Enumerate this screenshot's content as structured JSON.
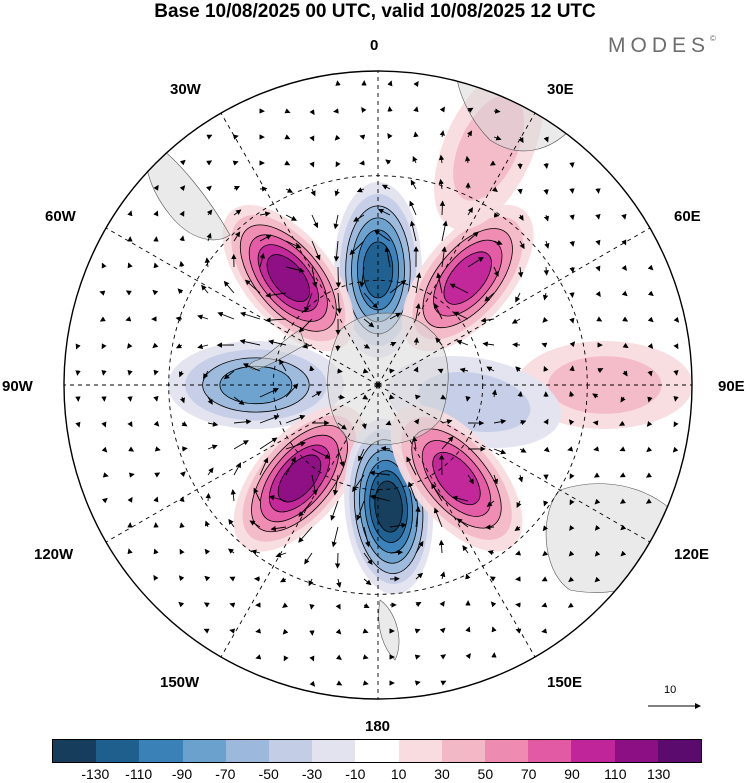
{
  "title": "Base 10/08/2025 00 UTC, valid 10/08/2025 12 UTC",
  "brand": "MODES",
  "brand_mark": "©",
  "longitude_labels": {
    "top": "0",
    "top_right": "30E",
    "right_upper": "60E",
    "right": "90E",
    "right_lower": "120E",
    "bottom_right": "150E",
    "bottom": "180",
    "bottom_left": "150W",
    "left_lower": "120W",
    "left": "90W",
    "left_upper": "60W",
    "top_left": "30W"
  },
  "reference_vector": "10",
  "colorbar": {
    "colors": [
      "#163e5c",
      "#1f5f8e",
      "#3a81b8",
      "#6ba1cd",
      "#9cb9dc",
      "#c4cde6",
      "#e3e3f0",
      "#ffffff",
      "#f8dcdf",
      "#f3b8c6",
      "#ee8bb1",
      "#e25aa4",
      "#c1259a",
      "#8c0f84",
      "#5b0a6e"
    ],
    "ticks": [
      "-130",
      "-110",
      "-90",
      "-70",
      "-50",
      "-30",
      "-10",
      "10",
      "30",
      "50",
      "70",
      "90",
      "110",
      "130"
    ]
  },
  "anomalies": [
    {
      "sign": "neg",
      "magnitude": 120,
      "lon": 0,
      "colat": 33
    },
    {
      "sign": "pos",
      "magnitude": 110,
      "lon": -40,
      "colat": 40
    },
    {
      "sign": "pos",
      "magnitude": 90,
      "lon": 40,
      "colat": 40
    },
    {
      "sign": "neg",
      "magnitude": 80,
      "lon": -90,
      "colat": 35
    },
    {
      "sign": "pos",
      "magnitude": 30,
      "lon": 90,
      "colat": 65
    },
    {
      "sign": "neg",
      "magnitude": 40,
      "lon": 100,
      "colat": 28
    },
    {
      "sign": "pos",
      "magnitude": 120,
      "lon": -140,
      "colat": 35
    },
    {
      "sign": "neg",
      "magnitude": 130,
      "lon": 175,
      "colat": 35
    },
    {
      "sign": "pos",
      "magnitude": 100,
      "lon": 140,
      "colat": 35
    },
    {
      "sign": "pos",
      "magnitude": 30,
      "lon": 25,
      "colat": 75
    }
  ]
}
